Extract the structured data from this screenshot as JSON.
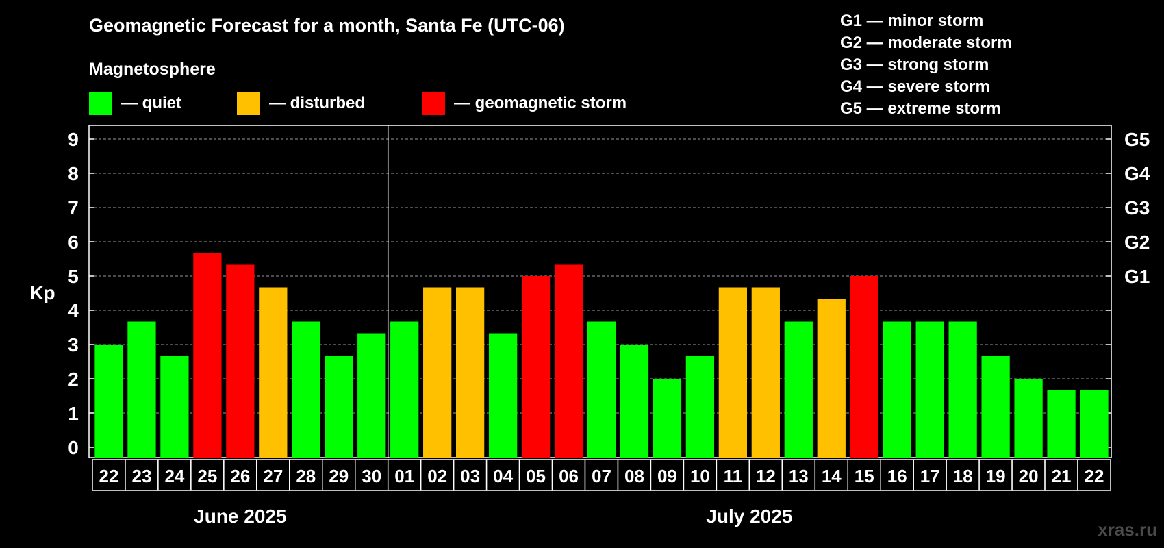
{
  "title": "Geomagnetic Forecast for a month, Santa Fe (UTC-06)",
  "legend": {
    "heading": "Magnetosphere",
    "items": [
      {
        "label": "— quiet",
        "color": "#00ff00"
      },
      {
        "label": "— disturbed",
        "color": "#ffc000"
      },
      {
        "label": "— geomagnetic storm",
        "color": "#ff0000"
      }
    ]
  },
  "storm_scale": [
    "G1 — minor storm",
    "G2 — moderate storm",
    "G3 — strong storm",
    "G4 — severe storm",
    "G5 — extreme storm"
  ],
  "watermark": "xras.ru",
  "chart_data": {
    "type": "bar",
    "ylabel": "Kp",
    "ylim": [
      0,
      9
    ],
    "yticks": [
      "0",
      "1",
      "2",
      "3",
      "4",
      "5",
      "6",
      "7",
      "8",
      "9"
    ],
    "right_axis_labels": [
      {
        "value": 5,
        "label": "G1"
      },
      {
        "value": 6,
        "label": "G2"
      },
      {
        "value": 7,
        "label": "G3"
      },
      {
        "value": 8,
        "label": "G4"
      },
      {
        "value": 9,
        "label": "G5"
      }
    ],
    "grid": "dashed horizontal",
    "categories": [
      "22",
      "23",
      "24",
      "25",
      "26",
      "27",
      "28",
      "29",
      "30",
      "01",
      "02",
      "03",
      "04",
      "05",
      "06",
      "07",
      "08",
      "09",
      "10",
      "11",
      "12",
      "13",
      "14",
      "15",
      "16",
      "17",
      "18",
      "19",
      "20",
      "21",
      "22"
    ],
    "values": [
      3.0,
      3.67,
      2.67,
      5.67,
      5.33,
      4.67,
      3.67,
      2.67,
      3.33,
      3.67,
      4.67,
      4.67,
      3.33,
      5.0,
      5.33,
      3.67,
      3.0,
      2.0,
      2.67,
      4.67,
      4.67,
      3.67,
      4.33,
      5.0,
      3.67,
      3.67,
      3.67,
      2.67,
      2.0,
      1.67,
      1.67
    ],
    "levels": [
      "quiet",
      "quiet",
      "quiet",
      "storm",
      "storm",
      "disturbed",
      "quiet",
      "quiet",
      "quiet",
      "quiet",
      "disturbed",
      "disturbed",
      "quiet",
      "storm",
      "storm",
      "quiet",
      "quiet",
      "quiet",
      "quiet",
      "disturbed",
      "disturbed",
      "quiet",
      "disturbed",
      "storm",
      "quiet",
      "quiet",
      "quiet",
      "quiet",
      "quiet",
      "quiet",
      "quiet"
    ],
    "level_colors": {
      "quiet": "#00ff00",
      "disturbed": "#ffc000",
      "storm": "#ff0000"
    },
    "months": [
      {
        "label": "June 2025",
        "days": 9
      },
      {
        "label": "July 2025",
        "days": 22
      }
    ]
  }
}
